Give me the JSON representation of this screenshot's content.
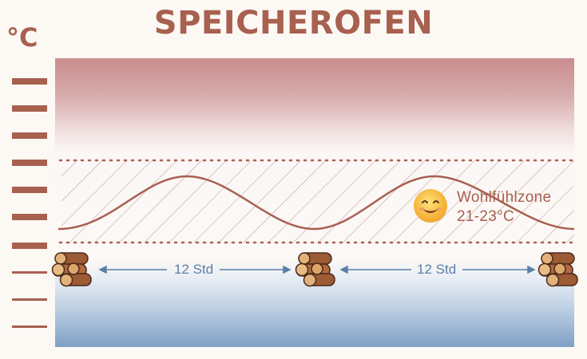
{
  "title": "SPEICHEROFEN",
  "unit_label": "°C",
  "comfort_zone": {
    "name": "Wohlfühlzone",
    "range": "21-23°C"
  },
  "intervals": [
    {
      "label": "12 Std"
    },
    {
      "label": "12 Std"
    }
  ],
  "icons": {
    "firewood": "firewood-logs-icon",
    "smiley": "smiling-face-icon"
  },
  "colors": {
    "accent": "#a8604f",
    "interval": "#5b7fa6",
    "warm": "#c98d8e",
    "cold": "#7ea0c4"
  }
}
